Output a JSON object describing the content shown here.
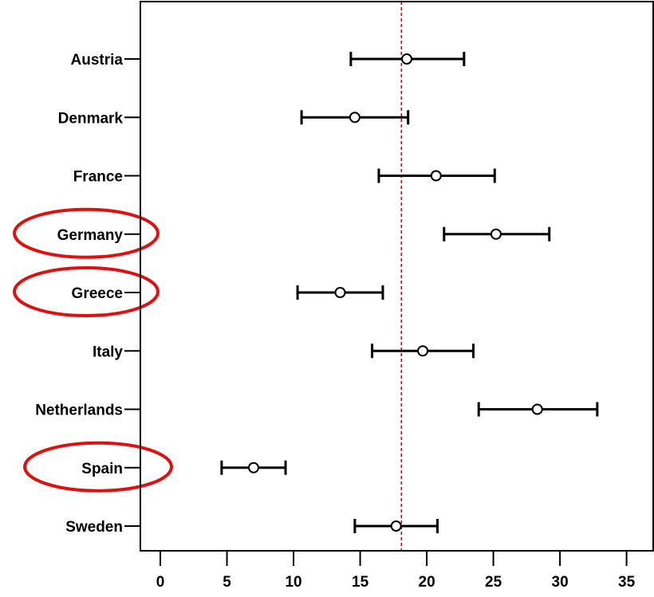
{
  "chart_data": {
    "type": "errorbar",
    "categories": [
      "Austria",
      "Denmark",
      "France",
      "Germany",
      "Greece",
      "Italy",
      "Netherlands",
      "Spain",
      "Sweden"
    ],
    "series": [
      {
        "estimate": [
          18.5,
          14.6,
          20.7,
          25.2,
          13.5,
          19.7,
          28.3,
          7.0,
          17.7
        ],
        "lower": [
          14.3,
          10.6,
          16.4,
          21.3,
          10.3,
          15.9,
          23.9,
          4.6,
          14.6
        ],
        "upper": [
          22.8,
          18.6,
          25.1,
          29.2,
          16.7,
          23.5,
          32.8,
          9.4,
          20.8
        ]
      }
    ],
    "x_ticks": [
      0,
      5,
      10,
      15,
      20,
      25,
      30,
      35
    ],
    "xlim": [
      -1.5,
      37
    ],
    "reference_line": {
      "x": 18.1,
      "style": "dashed",
      "color": "#cc0000"
    },
    "highlighted_categories": [
      "Germany",
      "Greece",
      "Spain"
    ],
    "highlight_color": "#e01010",
    "marker": "open-circle",
    "grid": false
  }
}
